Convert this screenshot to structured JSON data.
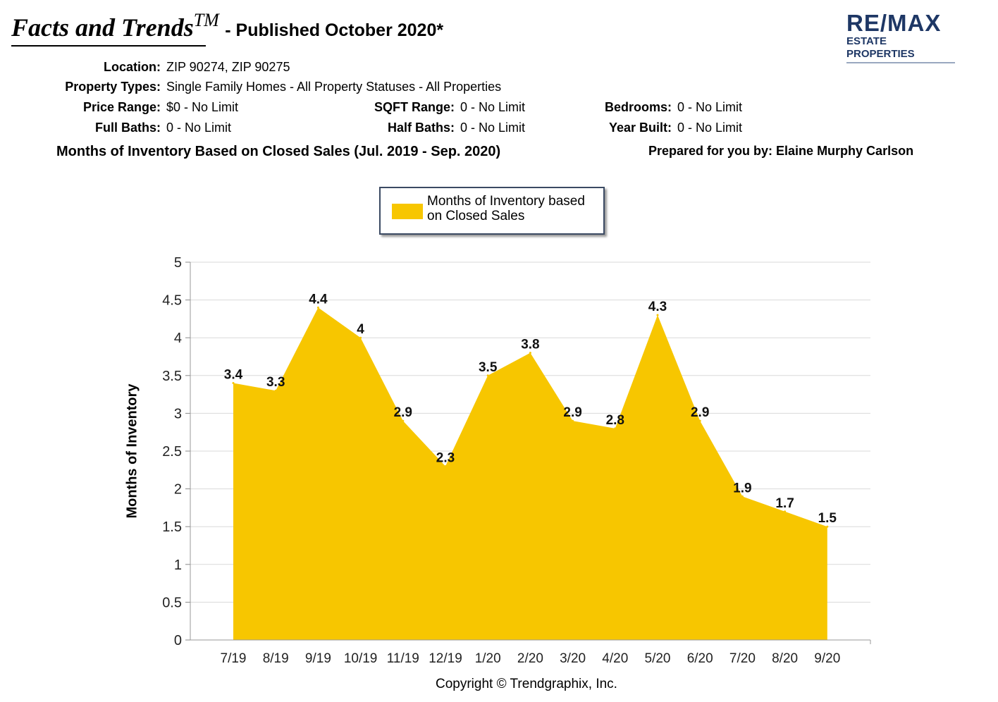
{
  "header": {
    "title": "Facts and Trends",
    "trademark": "TM",
    "published": "- Published October 2020*"
  },
  "logo": {
    "main": "RE/MAX",
    "sub": "ESTATE PROPERTIES",
    "color": "#1e3765"
  },
  "criteria": {
    "location": {
      "label": "Location:",
      "value": "ZIP 90274, ZIP 90275"
    },
    "property_types": {
      "label": "Property Types:",
      "value": "Single Family Homes - All Property Statuses - All Properties"
    },
    "price_range": {
      "label": "Price Range:",
      "value": "$0 - No Limit"
    },
    "sqft_range": {
      "label": "SQFT Range:",
      "value": "0 - No Limit"
    },
    "bedrooms": {
      "label": "Bedrooms:",
      "value": "0 - No Limit"
    },
    "full_baths": {
      "label": "Full Baths:",
      "value": "0 - No Limit"
    },
    "half_baths": {
      "label": "Half Baths:",
      "value": "0 - No Limit"
    },
    "year_built": {
      "label": "Year Built:",
      "value": "0 - No Limit"
    }
  },
  "subtitle": "Months of Inventory Based on Closed Sales (Jul. 2019 - Sep. 2020)",
  "prepared_by": "Prepared for you by: Elaine Murphy Carlson",
  "copyright": "Copyright © Trendgraphix, Inc.",
  "chart_data": {
    "type": "area",
    "categories": [
      "7/19",
      "8/19",
      "9/19",
      "10/19",
      "11/19",
      "12/19",
      "1/20",
      "2/20",
      "3/20",
      "4/20",
      "5/20",
      "6/20",
      "7/20",
      "8/20",
      "9/20"
    ],
    "series": [
      {
        "name": "Months of Inventory based on Closed Sales",
        "values": [
          3.4,
          3.3,
          4.4,
          4,
          2.9,
          2.3,
          3.5,
          3.8,
          2.9,
          2.8,
          4.3,
          2.9,
          1.9,
          1.7,
          1.5
        ],
        "labels": [
          "3.4",
          "3.3",
          "4.4",
          "4",
          "2.9",
          "2.3",
          "3.5",
          "3.8",
          "2.9",
          "2.8",
          "4.3",
          "2.9",
          "1.9",
          "1.7",
          "1.5"
        ],
        "color": "#f7c600"
      }
    ],
    "ylabel": "Months of Inventory",
    "ylim": [
      0,
      5
    ],
    "yticks": [
      "0",
      "0.5",
      "1",
      "1.5",
      "2",
      "2.5",
      "3",
      "3.5",
      "4",
      "4.5",
      "5"
    ],
    "grid": true,
    "legend_position": "top-center"
  }
}
